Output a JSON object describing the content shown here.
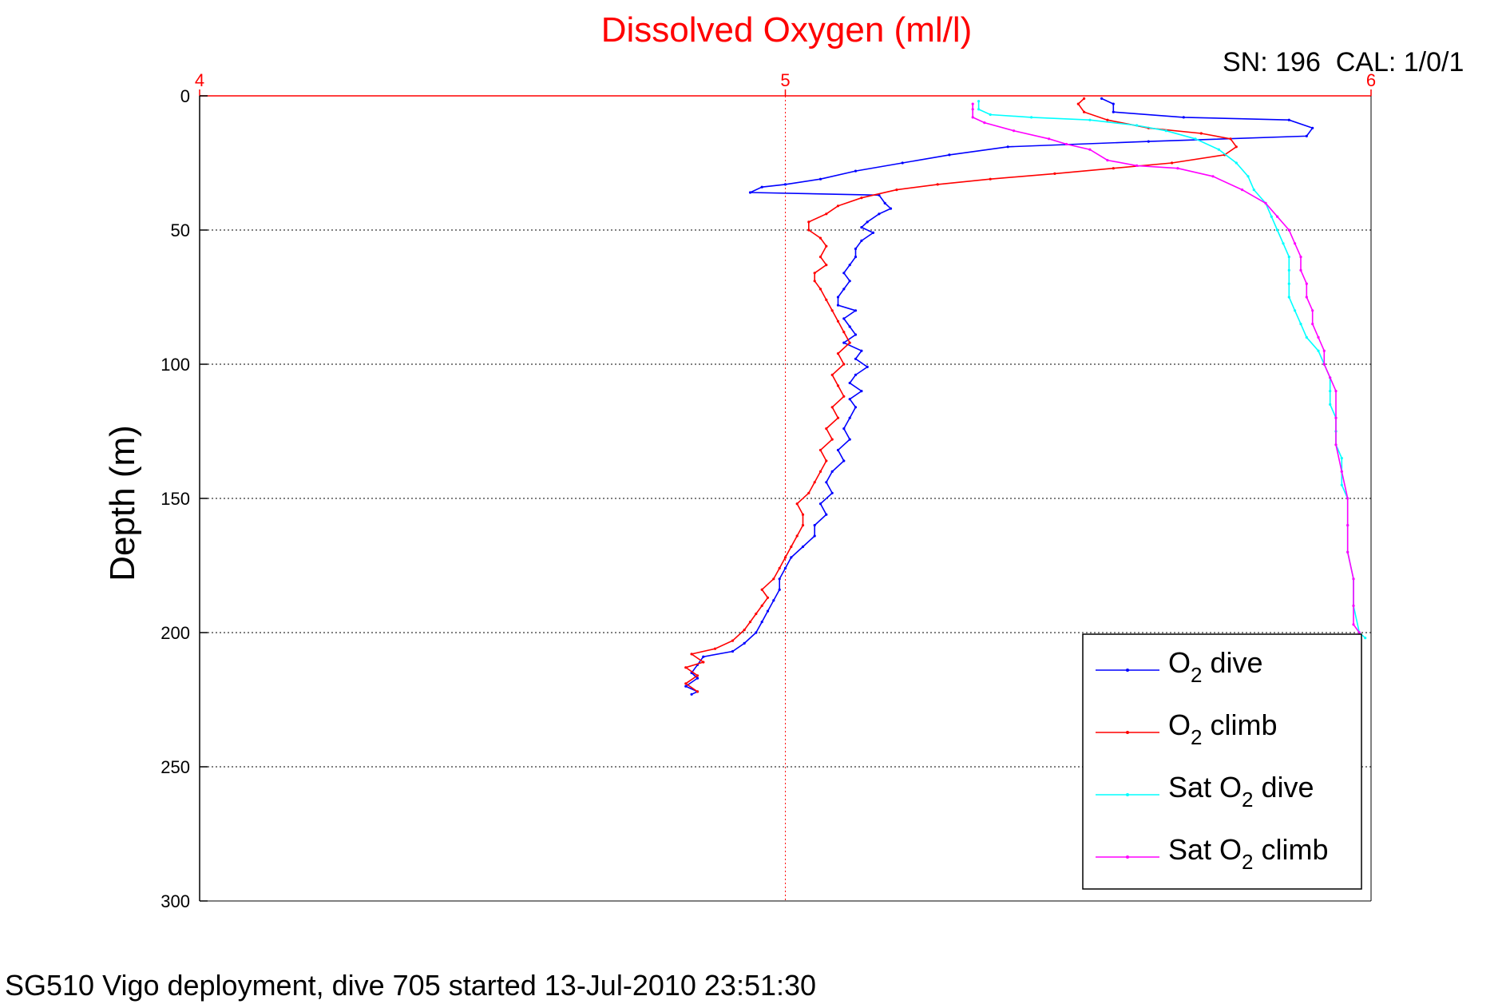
{
  "chart_data": {
    "type": "line",
    "title": "Dissolved Oxygen (ml/l)",
    "corner_label": "SN: 196  CAL: 1/0/1",
    "footer": "SG510 Vigo deployment, dive 705 started 13-Jul-2010 23:51:30",
    "xlabel": "",
    "ylabel": "Depth (m)",
    "xlim": [
      4,
      6
    ],
    "ylim": [
      0,
      300
    ],
    "y_reversed": true,
    "x_axis_position": "top",
    "x_ticks": [
      "4",
      "5",
      "6"
    ],
    "y_ticks": [
      "0",
      "50",
      "100",
      "150",
      "200",
      "250",
      "300"
    ],
    "grid": true,
    "legend_position": "bottom-right",
    "colors": {
      "title": "#ff0000",
      "x_axis": "#ff0000",
      "grid": "#000000",
      "y_axis": "#000000"
    },
    "series": [
      {
        "name_main": "O",
        "name_sub": "2",
        "name_suffix": " dive",
        "color": "#0000ff",
        "points": [
          [
            5.54,
            1
          ],
          [
            5.56,
            3
          ],
          [
            5.56,
            6
          ],
          [
            5.68,
            8
          ],
          [
            5.86,
            9
          ],
          [
            5.9,
            12
          ],
          [
            5.89,
            15
          ],
          [
            5.62,
            17
          ],
          [
            5.38,
            19
          ],
          [
            5.28,
            22
          ],
          [
            5.2,
            25
          ],
          [
            5.12,
            28
          ],
          [
            5.06,
            31
          ],
          [
            5.0,
            33
          ],
          [
            4.96,
            34
          ],
          [
            4.94,
            36
          ],
          [
            5.16,
            37
          ],
          [
            5.17,
            40
          ],
          [
            5.18,
            42
          ],
          [
            5.16,
            44
          ],
          [
            5.14,
            47
          ],
          [
            5.13,
            49
          ],
          [
            5.15,
            51
          ],
          [
            5.13,
            54
          ],
          [
            5.12,
            57
          ],
          [
            5.12,
            60
          ],
          [
            5.11,
            63
          ],
          [
            5.1,
            66
          ],
          [
            5.11,
            69
          ],
          [
            5.1,
            72
          ],
          [
            5.09,
            75
          ],
          [
            5.09,
            78
          ],
          [
            5.12,
            80
          ],
          [
            5.1,
            83
          ],
          [
            5.11,
            86
          ],
          [
            5.12,
            89
          ],
          [
            5.1,
            92
          ],
          [
            5.13,
            95
          ],
          [
            5.12,
            98
          ],
          [
            5.14,
            101
          ],
          [
            5.12,
            104
          ],
          [
            5.11,
            107
          ],
          [
            5.13,
            110
          ],
          [
            5.11,
            113
          ],
          [
            5.12,
            116
          ],
          [
            5.11,
            120
          ],
          [
            5.1,
            124
          ],
          [
            5.11,
            128
          ],
          [
            5.09,
            132
          ],
          [
            5.1,
            136
          ],
          [
            5.08,
            140
          ],
          [
            5.07,
            144
          ],
          [
            5.08,
            148
          ],
          [
            5.06,
            152
          ],
          [
            5.07,
            156
          ],
          [
            5.05,
            160
          ],
          [
            5.05,
            164
          ],
          [
            5.03,
            168
          ],
          [
            5.01,
            172
          ],
          [
            5.0,
            176
          ],
          [
            4.99,
            180
          ],
          [
            4.99,
            184
          ],
          [
            4.98,
            188
          ],
          [
            4.97,
            192
          ],
          [
            4.96,
            196
          ],
          [
            4.95,
            200
          ],
          [
            4.93,
            204
          ],
          [
            4.91,
            207
          ],
          [
            4.86,
            209
          ],
          [
            4.85,
            212
          ],
          [
            4.84,
            215
          ],
          [
            4.85,
            217
          ],
          [
            4.83,
            220
          ],
          [
            4.85,
            222
          ],
          [
            4.84,
            223
          ]
        ]
      },
      {
        "name_main": "O",
        "name_sub": "2",
        "name_suffix": " climb",
        "color": "#ff0000",
        "points": [
          [
            4.85,
            222
          ],
          [
            4.83,
            219
          ],
          [
            4.85,
            216
          ],
          [
            4.83,
            213
          ],
          [
            4.86,
            211
          ],
          [
            4.84,
            208
          ],
          [
            4.88,
            206
          ],
          [
            4.91,
            203
          ],
          [
            4.93,
            199
          ],
          [
            4.94,
            196
          ],
          [
            4.95,
            193
          ],
          [
            4.96,
            190
          ],
          [
            4.97,
            187
          ],
          [
            4.96,
            184
          ],
          [
            4.98,
            180
          ],
          [
            4.99,
            176
          ],
          [
            5.0,
            172
          ],
          [
            5.01,
            168
          ],
          [
            5.02,
            164
          ],
          [
            5.03,
            160
          ],
          [
            5.03,
            156
          ],
          [
            5.02,
            152
          ],
          [
            5.04,
            148
          ],
          [
            5.05,
            144
          ],
          [
            5.06,
            140
          ],
          [
            5.07,
            136
          ],
          [
            5.06,
            132
          ],
          [
            5.08,
            128
          ],
          [
            5.07,
            124
          ],
          [
            5.09,
            120
          ],
          [
            5.08,
            116
          ],
          [
            5.1,
            112
          ],
          [
            5.09,
            108
          ],
          [
            5.08,
            104
          ],
          [
            5.1,
            100
          ],
          [
            5.09,
            96
          ],
          [
            5.11,
            92
          ],
          [
            5.1,
            88
          ],
          [
            5.09,
            84
          ],
          [
            5.08,
            80
          ],
          [
            5.07,
            76
          ],
          [
            5.06,
            72
          ],
          [
            5.05,
            69
          ],
          [
            5.05,
            66
          ],
          [
            5.07,
            63
          ],
          [
            5.06,
            60
          ],
          [
            5.07,
            56
          ],
          [
            5.06,
            53
          ],
          [
            5.04,
            50
          ],
          [
            5.04,
            47
          ],
          [
            5.07,
            44
          ],
          [
            5.09,
            41
          ],
          [
            5.13,
            38
          ],
          [
            5.19,
            35
          ],
          [
            5.26,
            33
          ],
          [
            5.35,
            31
          ],
          [
            5.46,
            29
          ],
          [
            5.56,
            27
          ],
          [
            5.66,
            25
          ],
          [
            5.75,
            22
          ],
          [
            5.77,
            19
          ],
          [
            5.76,
            16
          ],
          [
            5.71,
            14
          ],
          [
            5.62,
            12
          ],
          [
            5.55,
            9
          ],
          [
            5.51,
            6
          ],
          [
            5.5,
            3
          ],
          [
            5.51,
            1
          ]
        ]
      },
      {
        "name_main": "Sat O",
        "name_sub": "2",
        "name_suffix": " dive",
        "color": "#00ffff",
        "points": [
          [
            5.33,
            2
          ],
          [
            5.33,
            5
          ],
          [
            5.35,
            7
          ],
          [
            5.42,
            8
          ],
          [
            5.52,
            9
          ],
          [
            5.6,
            11
          ],
          [
            5.65,
            13
          ],
          [
            5.7,
            16
          ],
          [
            5.74,
            20
          ],
          [
            5.77,
            25
          ],
          [
            5.79,
            30
          ],
          [
            5.8,
            35
          ],
          [
            5.82,
            40
          ],
          [
            5.83,
            45
          ],
          [
            5.84,
            50
          ],
          [
            5.85,
            55
          ],
          [
            5.86,
            60
          ],
          [
            5.86,
            65
          ],
          [
            5.86,
            70
          ],
          [
            5.86,
            75
          ],
          [
            5.87,
            80
          ],
          [
            5.88,
            85
          ],
          [
            5.89,
            90
          ],
          [
            5.91,
            95
          ],
          [
            5.92,
            100
          ],
          [
            5.93,
            105
          ],
          [
            5.93,
            110
          ],
          [
            5.93,
            115
          ],
          [
            5.94,
            120
          ],
          [
            5.94,
            125
          ],
          [
            5.94,
            130
          ],
          [
            5.95,
            135
          ],
          [
            5.95,
            140
          ],
          [
            5.95,
            145
          ],
          [
            5.96,
            150
          ],
          [
            5.96,
            160
          ],
          [
            5.96,
            170
          ],
          [
            5.97,
            180
          ],
          [
            5.97,
            190
          ],
          [
            5.98,
            200
          ],
          [
            5.99,
            202
          ]
        ]
      },
      {
        "name_main": "Sat O",
        "name_sub": "2",
        "name_suffix": " climb",
        "color": "#ff00ff",
        "points": [
          [
            5.98,
            202
          ],
          [
            5.98,
            200
          ],
          [
            5.97,
            197
          ],
          [
            5.97,
            190
          ],
          [
            5.97,
            180
          ],
          [
            5.96,
            170
          ],
          [
            5.96,
            160
          ],
          [
            5.96,
            150
          ],
          [
            5.95,
            140
          ],
          [
            5.94,
            130
          ],
          [
            5.94,
            120
          ],
          [
            5.94,
            110
          ],
          [
            5.93,
            105
          ],
          [
            5.92,
            100
          ],
          [
            5.92,
            95
          ],
          [
            5.91,
            90
          ],
          [
            5.9,
            85
          ],
          [
            5.9,
            80
          ],
          [
            5.89,
            75
          ],
          [
            5.89,
            70
          ],
          [
            5.88,
            65
          ],
          [
            5.88,
            60
          ],
          [
            5.87,
            55
          ],
          [
            5.86,
            50
          ],
          [
            5.84,
            45
          ],
          [
            5.82,
            40
          ],
          [
            5.78,
            35
          ],
          [
            5.73,
            30
          ],
          [
            5.67,
            27
          ],
          [
            5.6,
            26
          ],
          [
            5.55,
            24
          ],
          [
            5.52,
            20
          ],
          [
            5.48,
            18
          ],
          [
            5.45,
            16
          ],
          [
            5.39,
            13
          ],
          [
            5.34,
            10
          ],
          [
            5.32,
            8
          ],
          [
            5.32,
            5
          ],
          [
            5.32,
            3
          ]
        ]
      }
    ]
  }
}
